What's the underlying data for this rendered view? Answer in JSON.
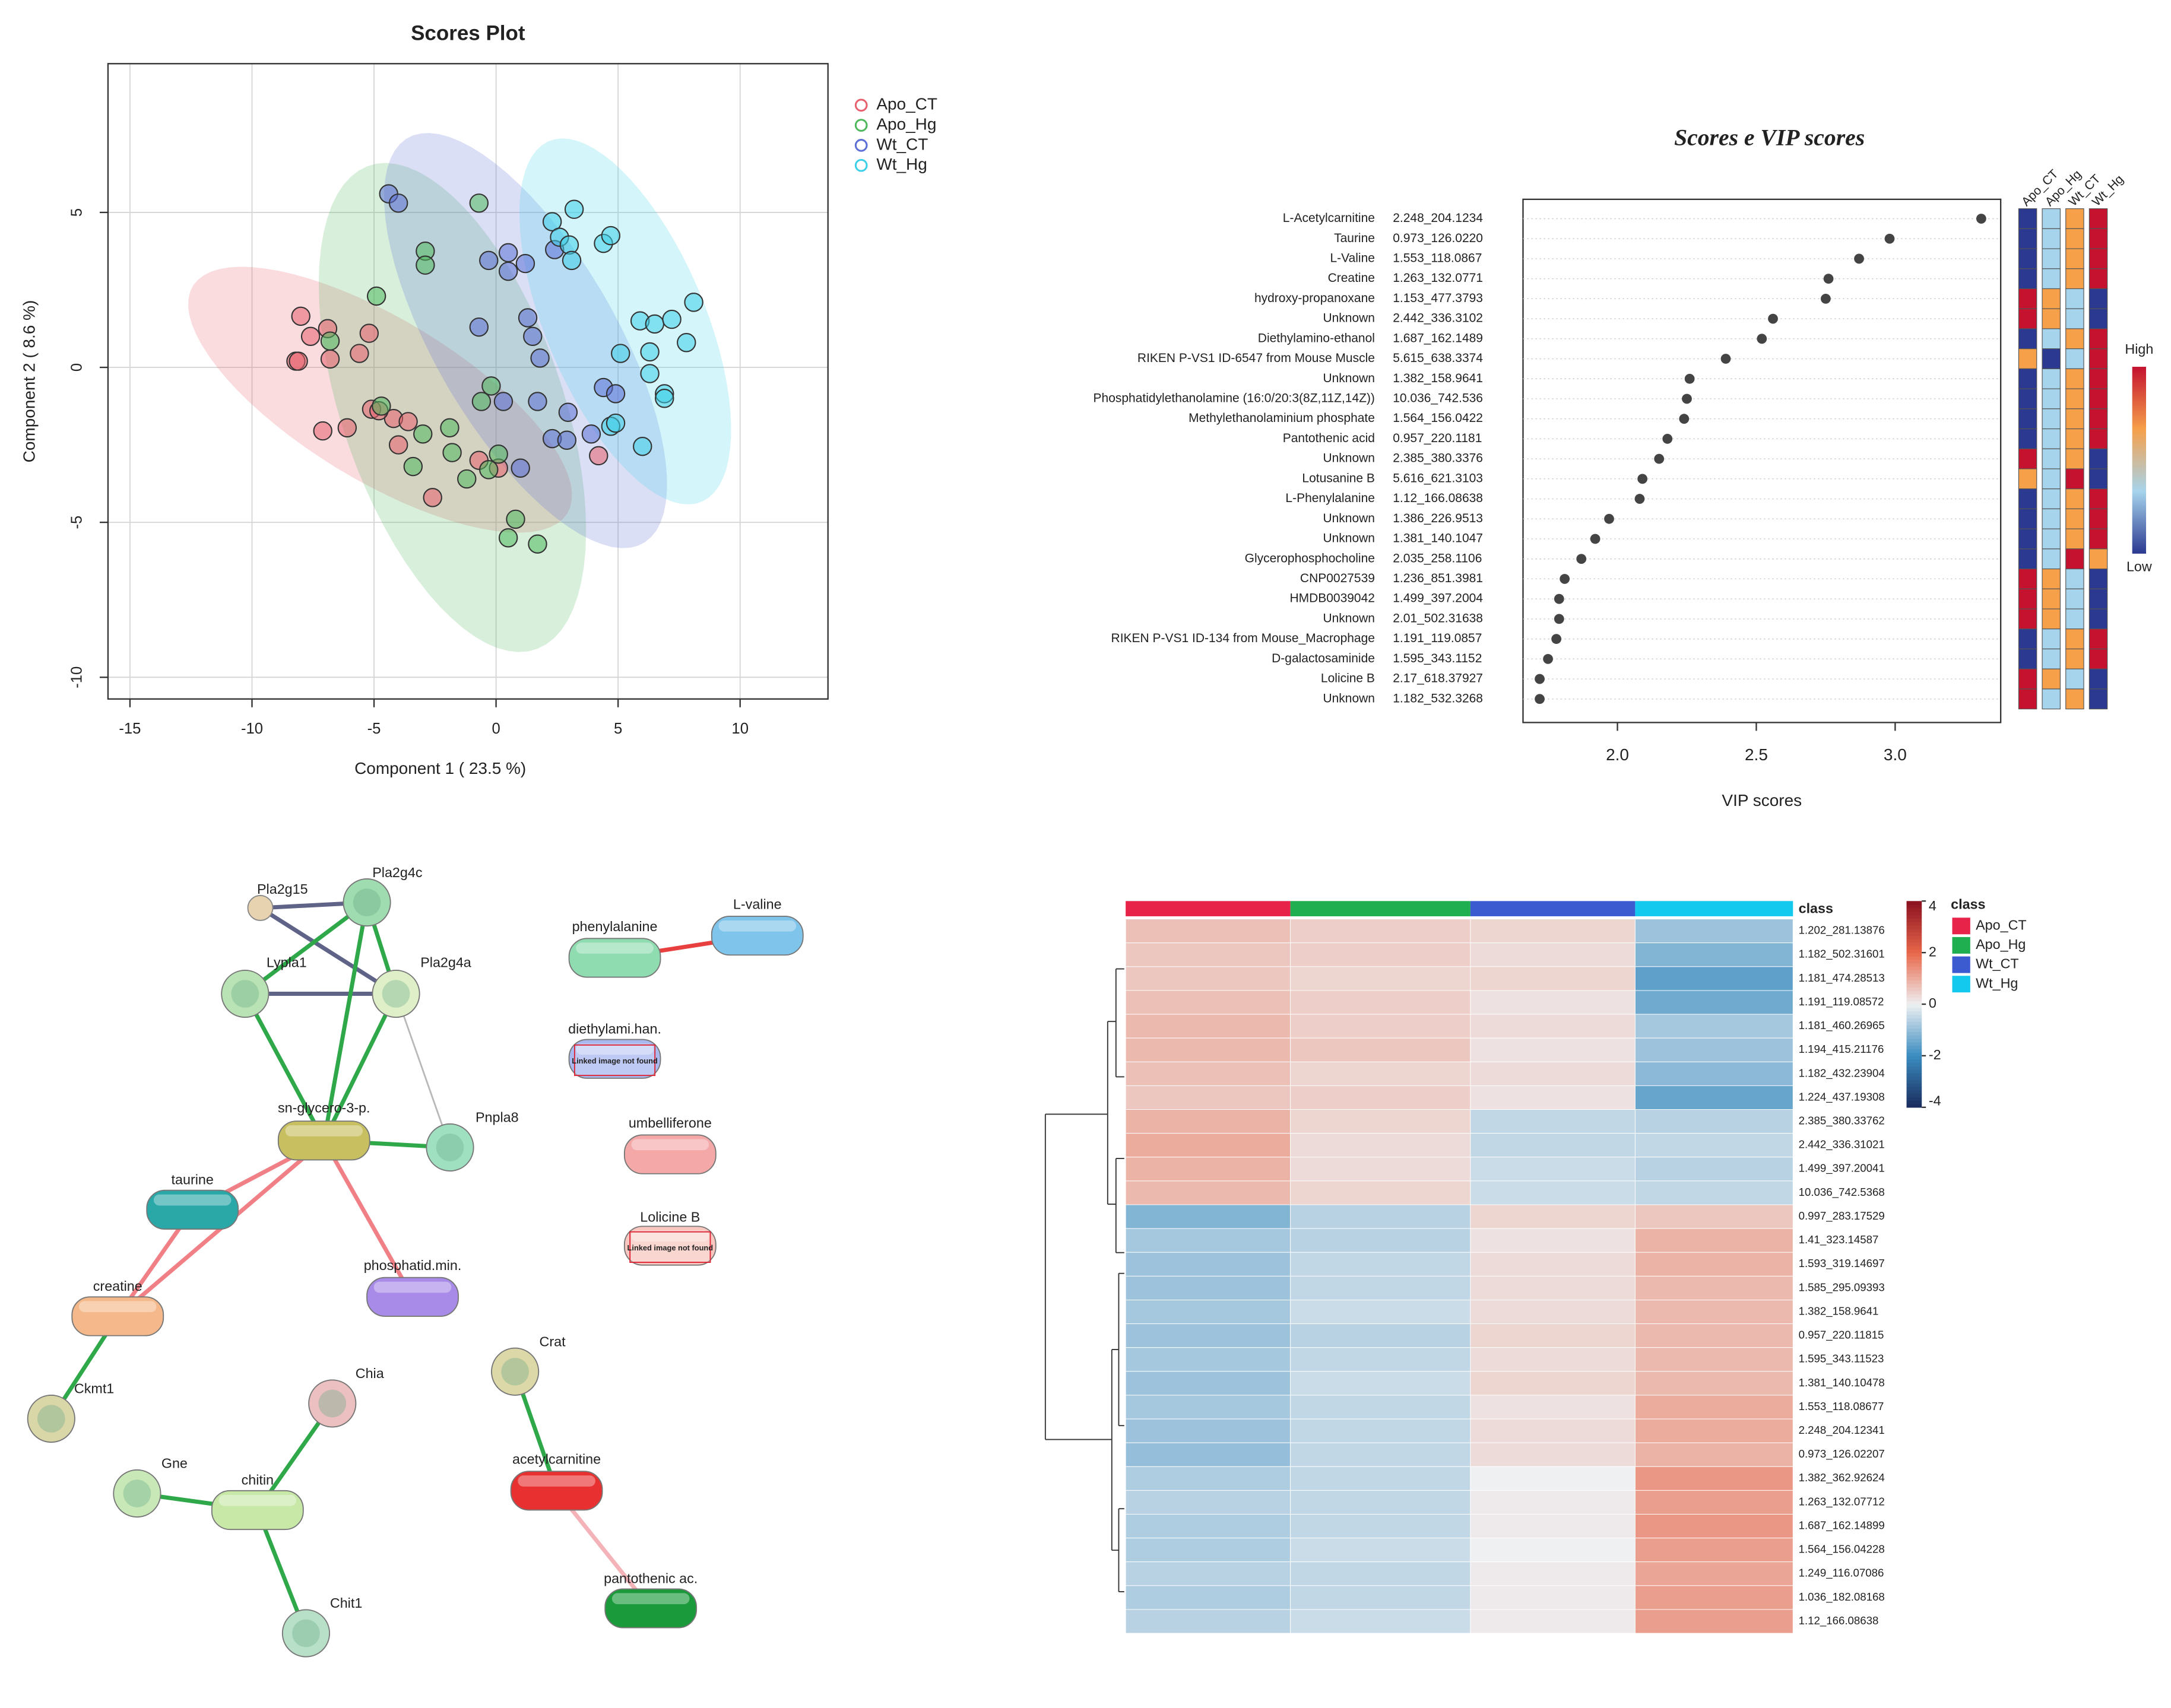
{
  "chart_data": [
    {
      "type": "scatter",
      "title": "Scores Plot",
      "xlabel": "Component 1 ( 23.5 %)",
      "ylabel": "Component 2 ( 8.6 %)",
      "xlim": [
        -15.9,
        13.6
      ],
      "ylim": [
        -10.7,
        9.8
      ],
      "xticks": [
        -15,
        -10,
        -5,
        0,
        5,
        10
      ],
      "yticks": [
        -10,
        -5,
        0,
        5
      ],
      "grid": true,
      "legend": "outside upper right",
      "ellipses": true,
      "series": [
        {
          "name": "Apo_CT",
          "color": "#e8606e",
          "x": [
            -8.0,
            -8.2,
            -7.6,
            -6.9,
            -6.8,
            -5.6,
            -5.2,
            -7.1,
            -6.1,
            -5.1,
            -4.2,
            -3.6,
            -4.0,
            -2.6,
            -0.7,
            0.1,
            4.2,
            -4.8,
            -8.1
          ],
          "y": [
            1.65,
            0.2,
            1.0,
            1.25,
            0.27,
            0.45,
            1.1,
            -2.05,
            -1.95,
            -1.35,
            -1.65,
            -1.75,
            -2.5,
            -4.2,
            -3.0,
            -3.25,
            -2.85,
            -1.4,
            0.2
          ]
        },
        {
          "name": "Apo_Hg",
          "color": "#4fb85c",
          "x": [
            -0.7,
            -2.9,
            -2.9,
            -4.9,
            -6.8,
            -4.7,
            -3.0,
            -3.4,
            -1.8,
            -1.2,
            -0.2,
            -0.6,
            0.1,
            -0.3,
            0.8,
            0.5,
            1.7,
            -1.9
          ],
          "y": [
            5.3,
            3.75,
            3.3,
            2.3,
            0.85,
            -1.25,
            -2.15,
            -3.2,
            -2.75,
            -3.6,
            -0.6,
            -1.1,
            -2.8,
            -3.3,
            -4.9,
            -5.5,
            -5.7,
            -1.95
          ]
        },
        {
          "name": "Wt_CT",
          "color": "#5b6fd6",
          "x": [
            -4.4,
            -4.0,
            -0.3,
            0.5,
            0.5,
            1.2,
            1.3,
            -0.7,
            1.5,
            1.8,
            0.3,
            1.7,
            2.95,
            2.3,
            3.9,
            1.0,
            4.4,
            4.9,
            2.4,
            2.9
          ],
          "y": [
            5.6,
            5.3,
            3.45,
            3.7,
            3.1,
            3.35,
            1.6,
            1.3,
            1.0,
            0.3,
            -1.1,
            -1.1,
            -1.45,
            -2.3,
            -2.15,
            -3.25,
            -0.65,
            -0.85,
            3.8,
            -2.35
          ]
        },
        {
          "name": "Wt_Hg",
          "color": "#3cd0e8",
          "x": [
            2.3,
            3.2,
            2.6,
            3.0,
            3.1,
            4.4,
            4.7,
            5.9,
            6.5,
            7.2,
            8.1,
            7.8,
            6.3,
            6.3,
            6.9,
            6.9,
            4.7,
            6.0,
            4.9,
            5.1
          ],
          "y": [
            4.7,
            5.1,
            4.2,
            3.95,
            3.45,
            4.0,
            4.25,
            1.5,
            1.4,
            1.55,
            2.1,
            0.8,
            0.5,
            -0.2,
            -0.85,
            -1.0,
            -1.9,
            -2.55,
            -1.8,
            0.45
          ]
        }
      ]
    },
    {
      "type": "dot",
      "title": "Scores e VIP scores",
      "xlabel": "VIP scores",
      "categories": [
        "L-Acetylcarnitine",
        "Taurine",
        "L-Valine",
        "Creatine",
        "hydroxy-propanoxane",
        "Unknown",
        "Diethylamino-ethanol",
        "RIKEN P-VS1 ID-6547 from Mouse Muscle",
        "Unknown",
        "Phosphatidylethanolamine (16:0/20:3(8Z,11Z,14Z))",
        "Methylethanolaminium phosphate",
        "Pantothenic acid",
        "Unknown",
        "Lotusanine B",
        "L-Phenylalanine",
        "Unknown",
        "Unknown",
        "Glycerophosphocholine",
        "CNP0027539",
        "HMDB0039042",
        "Unknown",
        "RIKEN P-VS1 ID-134 from Mouse_Macrophage",
        "D-galactosaminide",
        "Lolicine B",
        "Unknown"
      ],
      "ids": [
        "2.248_204.1234",
        "0.973_126.0220",
        "1.553_118.0867",
        "1.263_132.0771",
        "1.153_477.3793",
        "2.442_336.3102",
        "1.687_162.1489",
        "5.615_638.3374",
        "1.382_158.9641",
        "10.036_742.536",
        "1.564_156.0422",
        "0.957_220.1181",
        "2.385_380.3376",
        "5.616_621.3103",
        "1.12_166.08638",
        "1.386_226.9513",
        "1.381_140.1047",
        "2.035_258.1106",
        "1.236_851.3981",
        "1.499_397.2004",
        "2.01_502.31638",
        "1.191_119.0857",
        "1.595_343.1152",
        "2.17_618.37927",
        "1.182_532.3268"
      ],
      "values": [
        3.31,
        2.98,
        2.87,
        2.76,
        2.75,
        2.56,
        2.52,
        2.39,
        2.26,
        2.25,
        2.24,
        2.18,
        2.15,
        2.09,
        2.08,
        1.97,
        1.92,
        1.87,
        1.81,
        1.79,
        1.79,
        1.78,
        1.75,
        1.72,
        1.72
      ],
      "color": "#444444",
      "xlim": [
        1.66,
        3.38
      ],
      "xticks": [
        {
          "value": 2,
          "label": "2.0"
        },
        2.5,
        {
          "value": 3,
          "label": "3.0"
        }
      ],
      "groups": [
        "Apo_CT",
        "Apo_Hg",
        "Wt_CT",
        "Wt_Hg"
      ],
      "levels": [
        [
          1,
          2,
          3,
          4
        ],
        [
          1,
          2,
          3,
          4
        ],
        [
          1,
          2,
          3,
          4
        ],
        [
          1,
          2,
          3,
          4
        ],
        [
          4,
          3,
          2,
          1
        ],
        [
          4,
          3,
          2,
          1
        ],
        [
          1,
          2,
          3,
          4
        ],
        [
          3,
          1,
          2,
          4
        ],
        [
          1,
          2,
          3,
          4
        ],
        [
          1,
          2,
          3,
          4
        ],
        [
          1,
          2,
          3,
          4
        ],
        [
          1,
          2,
          3,
          4
        ],
        [
          4,
          2,
          3,
          1
        ],
        [
          3,
          2,
          4,
          1
        ],
        [
          1,
          2,
          3,
          4
        ],
        [
          1,
          2,
          3,
          4
        ],
        [
          1,
          2,
          3,
          4
        ],
        [
          1,
          2,
          4,
          3
        ],
        [
          4,
          3,
          2,
          1
        ],
        [
          4,
          3,
          2,
          1
        ],
        [
          4,
          3,
          2,
          1
        ],
        [
          1,
          2,
          3,
          4
        ],
        [
          1,
          2,
          3,
          4
        ],
        [
          4,
          3,
          2,
          1
        ],
        [
          4,
          2,
          3,
          1
        ]
      ],
      "level_colors": [
        "#2b3990",
        "#a6d4ec",
        "#f6a04a",
        "#c4122f"
      ],
      "legend_high": "High",
      "legend_low": "Low"
    },
    {
      "type": "network",
      "nodes": [
        "Pla2g15",
        "Pla2g4c",
        "Lypla1",
        "Pla2g4a",
        "sn-glycero-3-p.",
        "Pnpla8",
        "taurine",
        "creatine",
        "Ckmt1",
        "phosphatid.min.",
        "phenylalanine",
        "L-valine",
        "diethylami.han.",
        "umbelliferone",
        "Lolicine B",
        "Crat",
        "acetylcarnitine",
        "pantothenic ac.",
        "Chia",
        "Gne",
        "chitin",
        "Chit1"
      ],
      "placeholder_text": "Linked image not found",
      "edges": [
        [
          0,
          1,
          "#5f6388"
        ],
        [
          0,
          3,
          "#5f6388"
        ],
        [
          2,
          3,
          "#5f6388"
        ],
        [
          2,
          1,
          "#2fa84a"
        ],
        [
          1,
          3,
          "#2fa84a"
        ],
        [
          1,
          4,
          "#2fa84a"
        ],
        [
          2,
          4,
          "#2fa84a"
        ],
        [
          3,
          4,
          "#2fa84a"
        ],
        [
          3,
          5,
          "#b8b8b8"
        ],
        [
          4,
          5,
          "#2fa84a"
        ],
        [
          4,
          6,
          "#f07f86"
        ],
        [
          4,
          7,
          "#f07f86"
        ],
        [
          4,
          9,
          "#f07f86"
        ],
        [
          6,
          7,
          "#f07f86"
        ],
        [
          7,
          8,
          "#2fa84a"
        ],
        [
          10,
          11,
          "#e8403f"
        ],
        [
          15,
          16,
          "#2fa84a"
        ],
        [
          16,
          17,
          "#f3b3b8"
        ],
        [
          18,
          20,
          "#2fa84a"
        ],
        [
          19,
          20,
          "#2fa84a"
        ],
        [
          20,
          21,
          "#2fa84a"
        ]
      ]
    },
    {
      "type": "heatmap",
      "row_labels": [
        "1.202_281.13876",
        "1.182_502.31601",
        "1.181_474.28513",
        "1.191_119.08572",
        "1.181_460.26965",
        "1.194_415.21176",
        "1.182_432.23904",
        "1.224_437.19308",
        "2.385_380.33762",
        "2.442_336.31021",
        "1.499_397.20041",
        "10.036_742.5368",
        "0.997_283.17529",
        "1.41_323.14587",
        "1.593_319.14697",
        "1.585_295.09393",
        "1.382_158.9641",
        "0.957_220.11815",
        "1.595_343.11523",
        "1.381_140.10478",
        "1.553_118.08677",
        "2.248_204.12341",
        "0.973_126.02207",
        "1.382_362.92624",
        "1.263_132.07712",
        "1.687_162.14899",
        "1.564_156.04228",
        "1.249_116.07086",
        "1.036_182.08168",
        "1.12_166.08638"
      ],
      "classes": [
        {
          "name": "Apo_CT",
          "color": "#e8234a"
        },
        {
          "name": "Apo_Hg",
          "color": "#1fae50"
        },
        {
          "name": "Wt_CT",
          "color": "#3d5bd1"
        },
        {
          "name": "Wt_Hg",
          "color": "#13c9ee"
        }
      ],
      "class_label": "class",
      "values": [
        [
          0.7,
          0.5,
          0.4,
          -0.9
        ],
        [
          0.6,
          0.5,
          0.3,
          -1.2
        ],
        [
          0.6,
          0.4,
          0.4,
          -1.6
        ],
        [
          0.7,
          0.5,
          0.2,
          -1.4
        ],
        [
          0.8,
          0.5,
          0.3,
          -0.8
        ],
        [
          0.8,
          0.6,
          0.2,
          -0.9
        ],
        [
          0.7,
          0.4,
          0.3,
          -1.1
        ],
        [
          0.6,
          0.5,
          0.2,
          -1.5
        ],
        [
          0.9,
          0.4,
          -0.5,
          -0.6
        ],
        [
          1.0,
          0.3,
          -0.5,
          -0.5
        ],
        [
          0.9,
          0.3,
          -0.4,
          -0.6
        ],
        [
          0.8,
          0.4,
          -0.4,
          -0.5
        ],
        [
          -1.2,
          -0.6,
          0.4,
          0.6
        ],
        [
          -0.8,
          -0.6,
          0.2,
          0.9
        ],
        [
          -0.9,
          -0.5,
          0.3,
          0.9
        ],
        [
          -0.9,
          -0.5,
          0.3,
          0.8
        ],
        [
          -0.8,
          -0.4,
          0.3,
          0.8
        ],
        [
          -0.9,
          -0.6,
          0.4,
          0.8
        ],
        [
          -0.8,
          -0.5,
          0.3,
          0.8
        ],
        [
          -0.9,
          -0.4,
          0.4,
          0.8
        ],
        [
          -0.8,
          -0.5,
          0.2,
          1.0
        ],
        [
          -0.9,
          -0.5,
          0.3,
          1.0
        ],
        [
          -1.0,
          -0.5,
          0.3,
          0.9
        ],
        [
          -0.7,
          -0.5,
          0.0,
          1.3
        ],
        [
          -0.6,
          -0.5,
          0.1,
          1.2
        ],
        [
          -0.7,
          -0.5,
          0.1,
          1.3
        ],
        [
          -0.7,
          -0.4,
          0.0,
          1.2
        ],
        [
          -0.6,
          -0.5,
          0.1,
          1.1
        ],
        [
          -0.7,
          -0.5,
          0.1,
          1.2
        ],
        [
          -0.6,
          -0.4,
          0.1,
          1.2
        ]
      ],
      "clim": [
        -4,
        4
      ],
      "colorbar_ticks": [
        4,
        2,
        0,
        -2,
        -4
      ],
      "cmap": [
        "#1a2b5c",
        "#3a8cc0",
        "#eef0f2",
        "#e8674a",
        "#8a1020"
      ]
    }
  ]
}
